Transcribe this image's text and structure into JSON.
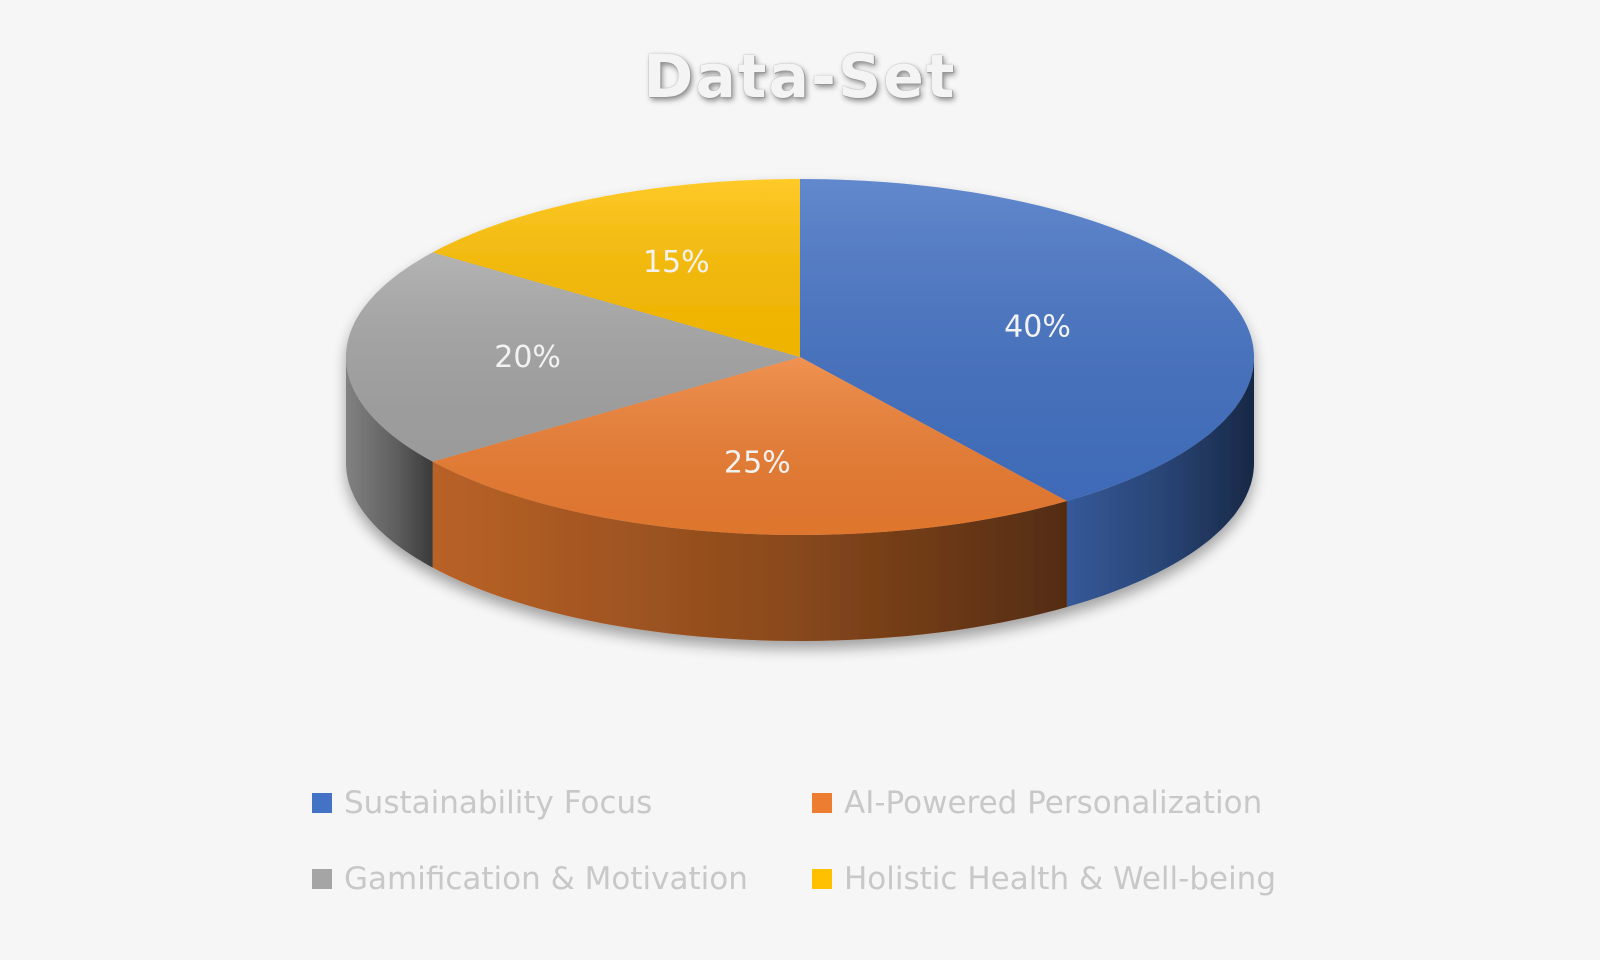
{
  "chart_data": {
    "type": "pie",
    "title": "Data-Set",
    "categories": [
      "Sustainability Focus",
      "AI-Powered Personalization",
      "Gamification & Motivation",
      "Holistic Health & Well-being"
    ],
    "values": [
      40,
      25,
      20,
      15
    ],
    "data_labels": [
      "40%",
      "25%",
      "20%",
      "15%"
    ],
    "colors": [
      "#4472c4",
      "#ed7d31",
      "#a5a5a5",
      "#ffc000"
    ],
    "style": "3d",
    "legend_position": "bottom",
    "grid": false
  }
}
